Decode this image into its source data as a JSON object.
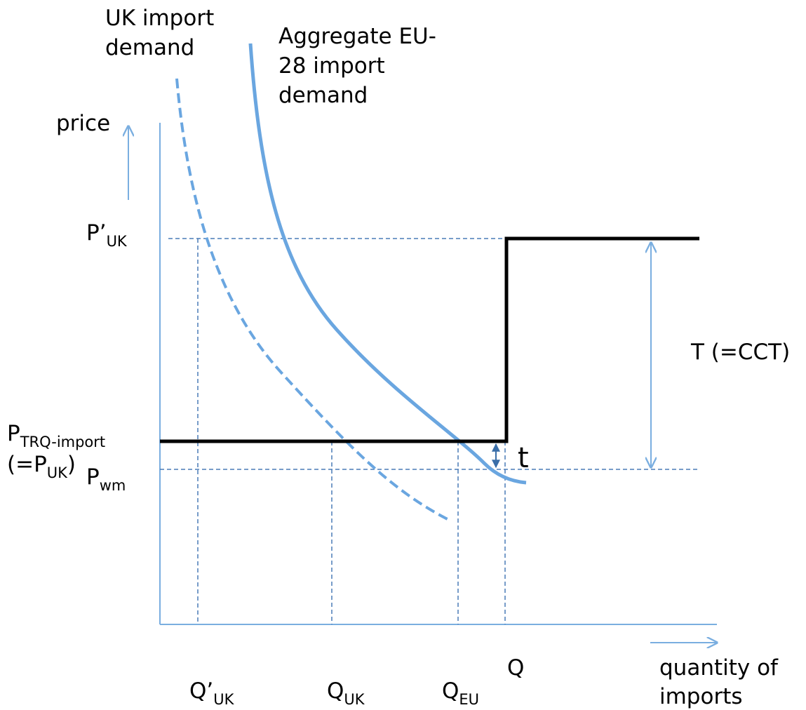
{
  "labels": {
    "uk_demand": [
      "UK import",
      "demand"
    ],
    "eu_demand": [
      "Aggregate EU-",
      "28 import",
      "demand"
    ],
    "price": "price",
    "p_uk_prime": {
      "main": "P’",
      "sub": "UK"
    },
    "tcct": "T (=CCT)",
    "p_trq": {
      "main": "P",
      "sub": "TRQ-import"
    },
    "p_uk_paren": {
      "open": "(=P",
      "sub": "UK",
      "close": ")"
    },
    "p_wm": {
      "main": "P",
      "sub": "wm"
    },
    "t": "t",
    "q": "Q",
    "quantity": [
      "quantity of",
      "imports"
    ],
    "q_uk_prime": {
      "main": "Q’",
      "sub": "UK"
    },
    "q_uk": {
      "main": "Q",
      "sub": "UK"
    },
    "q_eu": {
      "main": "Q",
      "sub": "EU"
    }
  }
}
